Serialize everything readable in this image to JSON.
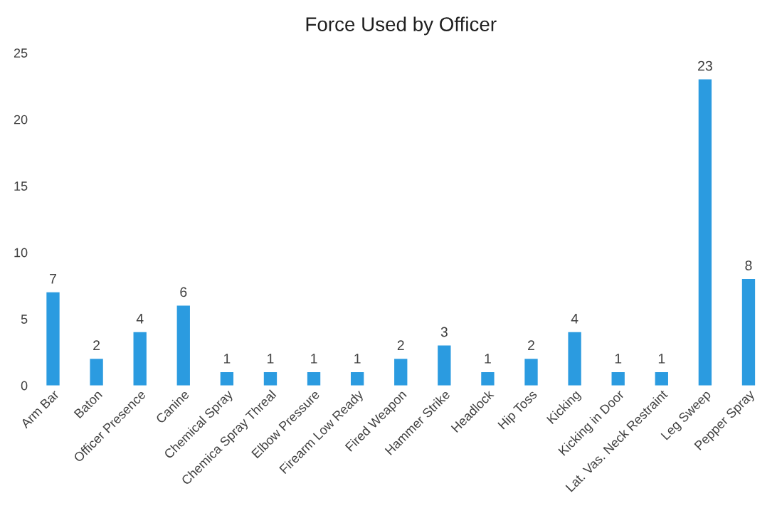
{
  "chart_data": {
    "type": "bar",
    "title": "Force Used by Officer",
    "categories": [
      "Arm Bar",
      "Baton",
      "Officer Presence",
      "Canine",
      "Chemical Spray",
      "Chemica Spray Threal",
      "Elbow Pressure",
      "Firearm Low Ready",
      "Fired Weapon",
      "Hammer Strike",
      "Headlock",
      "Hip Toss",
      "Kicking",
      "Kicking in Door",
      "Lat. Vas. Neck Restraint",
      "Leg Sweep",
      "Pepper Spray"
    ],
    "values": [
      7,
      2,
      4,
      6,
      1,
      1,
      1,
      1,
      2,
      3,
      1,
      2,
      4,
      1,
      1,
      23,
      8
    ],
    "color": "#2b9be0",
    "ylim": [
      0,
      25
    ],
    "yticks": [
      0,
      5,
      10,
      15,
      20,
      25
    ],
    "grid": false,
    "legend": false,
    "data_labels": true
  }
}
